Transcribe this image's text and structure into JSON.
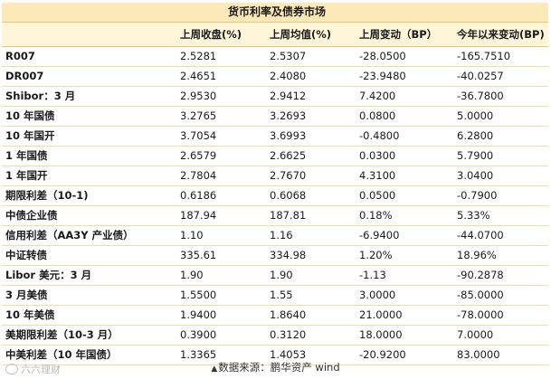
{
  "table": {
    "title": "货币利率及债券市场",
    "headers": [
      "",
      "上周收盘(%)",
      "上周均值(%)",
      "上周变动（BP）",
      "今年以来变动(BP)"
    ],
    "rows": [
      {
        "name": "R007",
        "close": "2.5281",
        "avg": "2.5307",
        "weekly": "-28.0500",
        "ytd": "-165.7510"
      },
      {
        "name": "DR007",
        "close": "2.4651",
        "avg": "2.4080",
        "weekly": "-23.9480",
        "ytd": "-40.0257"
      },
      {
        "name": "Shibor：3 月",
        "close": "2.9530",
        "avg": "2.9412",
        "weekly": "7.4200",
        "ytd": "-36.7800"
      },
      {
        "name": "10 年国债",
        "close": "3.2765",
        "avg": "3.2693",
        "weekly": "0.0800",
        "ytd": "5.0000"
      },
      {
        "name": "10 年国开",
        "close": "3.7054",
        "avg": "3.6993",
        "weekly": "-0.4800",
        "ytd": "6.2800"
      },
      {
        "name": "1 年国债",
        "close": "2.6579",
        "avg": "2.6625",
        "weekly": "0.0300",
        "ytd": "5.7900"
      },
      {
        "name": "1 年国开",
        "close": "2.7804",
        "avg": "2.7670",
        "weekly": "4.3100",
        "ytd": "3.0400"
      },
      {
        "name": "期限利差（10-1)",
        "close": "0.6186",
        "avg": "0.6068",
        "weekly": "0.0500",
        "ytd": "-0.7900"
      },
      {
        "name": "中债企业债",
        "close": "187.94",
        "avg": "187.81",
        "weekly": "0.18%",
        "ytd": "5.33%"
      },
      {
        "name": "信用利差（AA3Y 产业债）",
        "close": "1.10",
        "avg": "1.16",
        "weekly": "-6.9400",
        "ytd": "-44.0700"
      },
      {
        "name": "中证转债",
        "close": "335.61",
        "avg": "334.98",
        "weekly": "1.20%",
        "ytd": "18.96%"
      },
      {
        "name": "Libor 美元：3 月",
        "close": "1.90",
        "avg": "1.90",
        "weekly": "-1.13",
        "ytd": "-90.2878"
      },
      {
        "name": "3 月美债",
        "close": "1.5500",
        "avg": "1.55",
        "weekly": "3.0000",
        "ytd": "-85.0000"
      },
      {
        "name": "10 年美债",
        "close": "1.9400",
        "avg": "1.8640",
        "weekly": "21.0000",
        "ytd": "-78.0000"
      },
      {
        "name": "美期限利差（10-3 月）",
        "close": "0.3900",
        "avg": "0.3120",
        "weekly": "18.0000",
        "ytd": "7.0000"
      },
      {
        "name": "中美利差（10 年国债）",
        "close": "1.3365",
        "avg": "1.4053",
        "weekly": "-20.9200",
        "ytd": "83.0000"
      }
    ]
  },
  "footer": {
    "source_marker": "▲",
    "source_text": "数据来源：鹏华资产  wind",
    "watermark_text": "六六理财"
  },
  "colors": {
    "title_bg": "#fde9b7",
    "header_bg": "#fff5d9",
    "row_border": "#f2dca0"
  }
}
